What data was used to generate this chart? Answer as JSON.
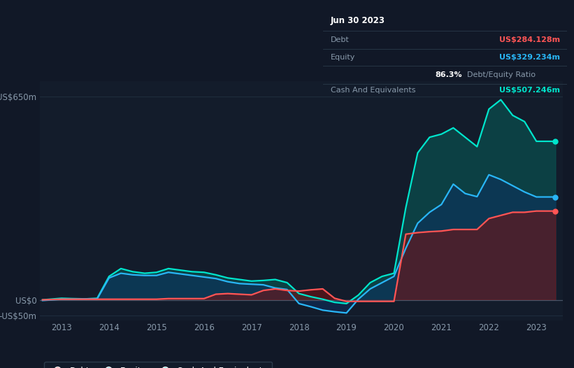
{
  "bg_color": "#111827",
  "plot_bg_color": "#131c2b",
  "tooltip": {
    "title": "Jun 30 2023",
    "debt_label": "Debt",
    "debt_value": "US$284.128m",
    "equity_label": "Equity",
    "equity_value": "US$329.234m",
    "ratio_value": "86.3%",
    "ratio_label": "Debt/Equity Ratio",
    "cash_label": "Cash And Equivalents",
    "cash_value": "US$507.246m"
  },
  "years": [
    2012.6,
    2013.0,
    2013.2,
    2013.5,
    2013.75,
    2014.0,
    2014.25,
    2014.5,
    2014.75,
    2015.0,
    2015.25,
    2015.5,
    2015.75,
    2016.0,
    2016.25,
    2016.5,
    2016.75,
    2017.0,
    2017.25,
    2017.5,
    2017.75,
    2018.0,
    2018.25,
    2018.5,
    2018.75,
    2019.0,
    2019.25,
    2019.5,
    2019.75,
    2020.0,
    2020.25,
    2020.5,
    2020.75,
    2021.0,
    2021.25,
    2021.5,
    2021.75,
    2022.0,
    2022.25,
    2022.5,
    2022.75,
    2023.0,
    2023.4
  ],
  "debt": [
    0,
    2,
    2,
    2,
    2,
    2,
    2,
    2,
    2,
    2,
    4,
    4,
    4,
    4,
    18,
    20,
    18,
    16,
    30,
    35,
    30,
    28,
    32,
    35,
    5,
    -5,
    -5,
    -5,
    -5,
    -5,
    210,
    215,
    218,
    220,
    225,
    225,
    225,
    260,
    270,
    280,
    280,
    284,
    284
  ],
  "equity": [
    -2,
    2,
    2,
    3,
    3,
    70,
    85,
    80,
    78,
    78,
    88,
    83,
    78,
    73,
    68,
    58,
    52,
    50,
    48,
    38,
    33,
    -12,
    -22,
    -33,
    -38,
    -42,
    2,
    35,
    55,
    75,
    165,
    245,
    280,
    305,
    370,
    340,
    330,
    400,
    385,
    365,
    345,
    329,
    329
  ],
  "cash": [
    0,
    5,
    4,
    3,
    5,
    75,
    100,
    90,
    85,
    88,
    100,
    95,
    90,
    88,
    80,
    70,
    65,
    60,
    62,
    65,
    55,
    20,
    10,
    2,
    -8,
    -12,
    15,
    55,
    75,
    85,
    295,
    470,
    520,
    530,
    550,
    520,
    490,
    610,
    640,
    590,
    570,
    507,
    507
  ],
  "ylabel_top": "US$650m",
  "ylabel_zero": "US$0",
  "ylabel_neg": "-US$50m",
  "ylim": [
    -65,
    700
  ],
  "xlim": [
    2012.55,
    2023.55
  ],
  "debt_color": "#ff5555",
  "equity_color": "#29b6f6",
  "cash_color": "#00e5cc",
  "debt_fill": "#7a1010",
  "equity_fill": "#0d3060",
  "cash_fill": "#0a5050",
  "grid_color": "#1e2d3d",
  "zero_line_color": "#4a5568",
  "xticks": [
    2013,
    2014,
    2015,
    2016,
    2017,
    2018,
    2019,
    2020,
    2021,
    2022,
    2023
  ],
  "tooltip_box_color": "#050a10",
  "tooltip_border_color": "#2a3a4a",
  "tooltip_debt_color": "#ff5555",
  "tooltip_equity_color": "#29b6f6",
  "tooltip_cash_color": "#00e5cc",
  "tooltip_label_color": "#8899aa",
  "tooltip_ratio_bold_color": "#ffffff",
  "tooltip_title_color": "#ffffff"
}
